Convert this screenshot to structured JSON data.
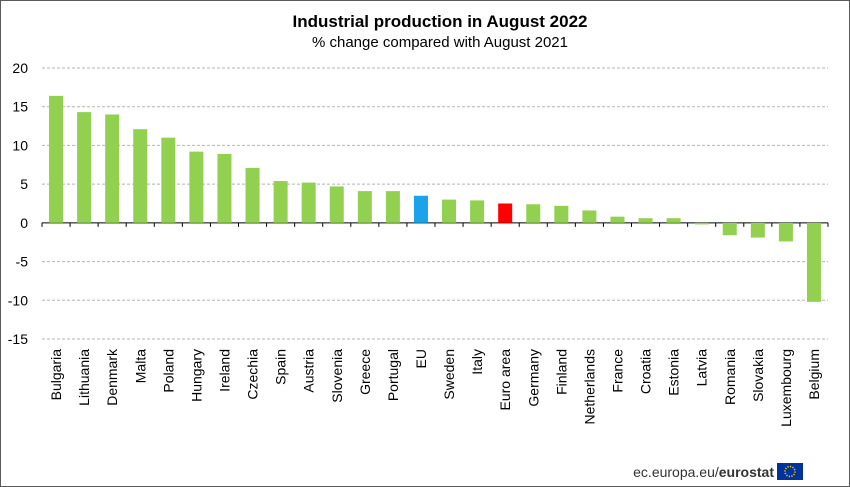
{
  "chart_data": {
    "type": "bar",
    "title": "Industrial production in August 2022",
    "subtitle": "% change compared with August 2021",
    "xlabel": "",
    "ylabel": "",
    "ylim": [
      -15,
      20
    ],
    "yticks": [
      20,
      15,
      10,
      5,
      0,
      -5,
      -10,
      -15
    ],
    "grid": true,
    "categories": [
      "Bulgaria",
      "Lithuania",
      "Denmark",
      "Malta",
      "Poland",
      "Hungary",
      "Ireland",
      "Czechia",
      "Spain",
      "Austria",
      "Slovenia",
      "Greece",
      "Portugal",
      "EU",
      "Sweden",
      "Italy",
      "Euro area",
      "Germany",
      "Finland",
      "Netherlands",
      "France",
      "Croatia",
      "Estonia",
      "Latvia",
      "Romania",
      "Slovakia",
      "Luxembourg",
      "Belgium"
    ],
    "values": [
      16.4,
      14.3,
      14.0,
      12.1,
      11.0,
      9.2,
      8.9,
      7.1,
      5.4,
      5.2,
      4.7,
      4.1,
      4.1,
      3.5,
      3.0,
      2.9,
      2.5,
      2.4,
      2.2,
      1.6,
      0.8,
      0.6,
      0.6,
      -0.2,
      -1.6,
      -1.9,
      -2.4,
      -10.2
    ],
    "colors": {
      "default": "#92d050",
      "EU": "#1aa3e8",
      "Euro area": "#ff0000"
    }
  },
  "source": {
    "domain": "ec.europa.eu/",
    "brand": "eurostat"
  }
}
